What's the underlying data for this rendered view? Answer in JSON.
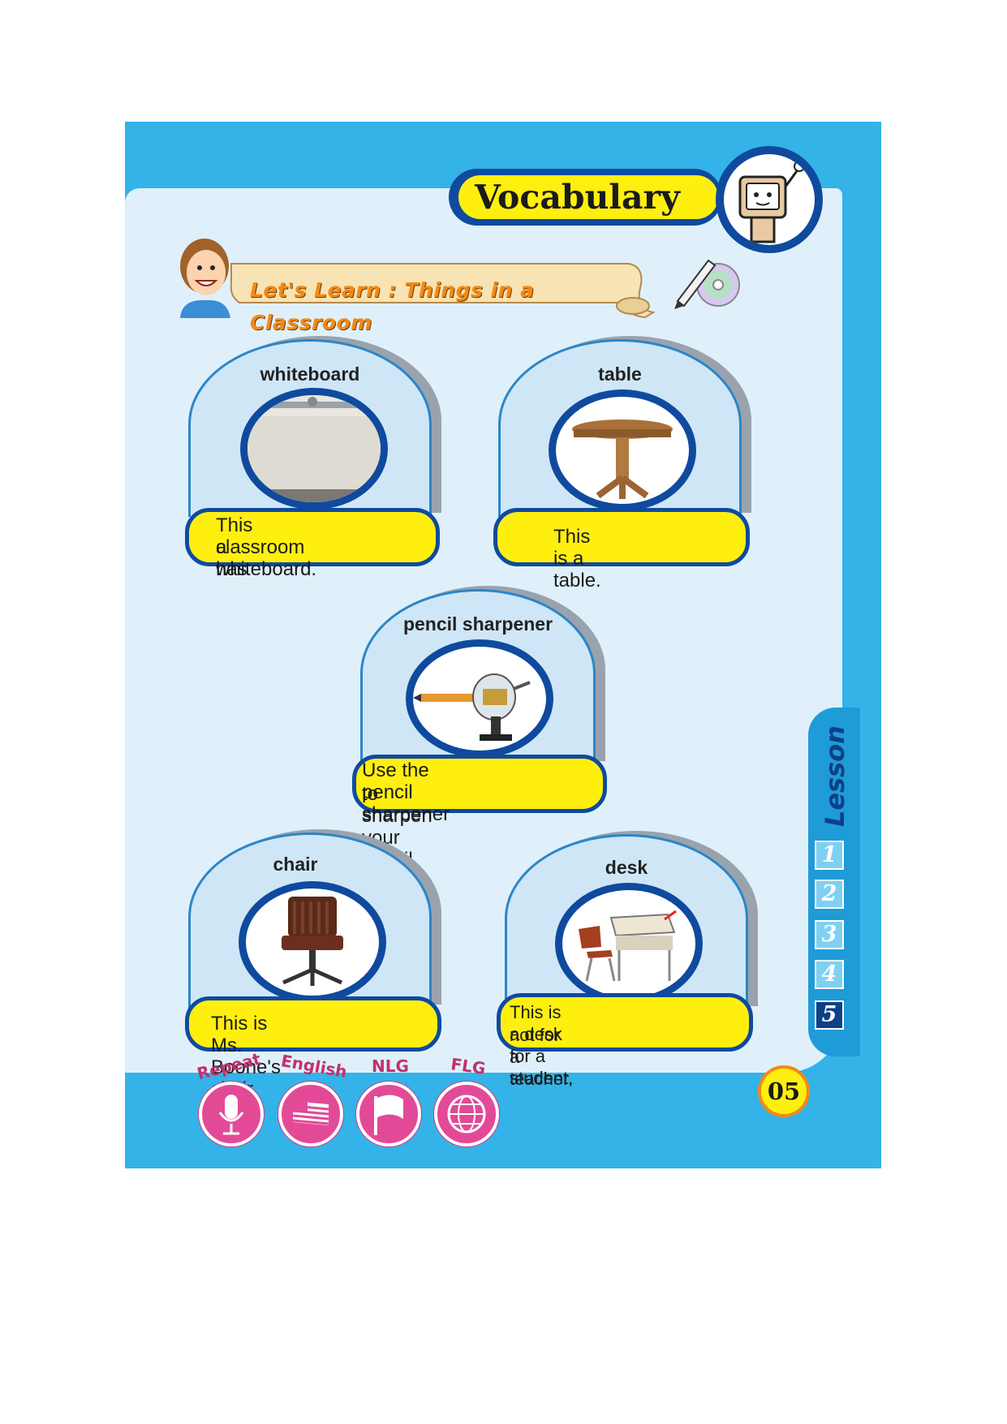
{
  "header": {
    "title": "Vocabulary"
  },
  "subheader": {
    "title": "Let's Learn : Things in a Classroom"
  },
  "cards": [
    {
      "word": "whiteboard",
      "sentence_1": "This classroom has",
      "sentence_2": "a whiteboard."
    },
    {
      "word": "table",
      "sentence_1": "This is a table.",
      "sentence_2": ""
    },
    {
      "word": "pencil sharpener",
      "sentence_1": "Use the pencil sharpener",
      "sentence_2": "to sharpen your pencil."
    },
    {
      "word": "chair",
      "sentence_1": "This is Ms. Boone's chair.",
      "sentence_2": ""
    },
    {
      "word": "desk",
      "sentence_1": "This is a desk for a student,",
      "sentence_2": "not for a teacher."
    }
  ],
  "lesson_tab": {
    "label": "Lesson",
    "numbers": [
      "1",
      "2",
      "3",
      "4",
      "5"
    ],
    "active": "5"
  },
  "page_number": "05",
  "modes": [
    {
      "label": "Repeat",
      "icon": "microphone-icon"
    },
    {
      "label": "English",
      "icon": "us-flag-icon"
    },
    {
      "label": "NLG",
      "icon": "flag-icon"
    },
    {
      "label": "FLG",
      "icon": "globe-icon"
    }
  ],
  "colors": {
    "frame": "#33b3e8",
    "panel": "#dff0fb",
    "navy": "#0f4a9e",
    "yellow": "#ffef0f",
    "pink": "#e24a97"
  }
}
